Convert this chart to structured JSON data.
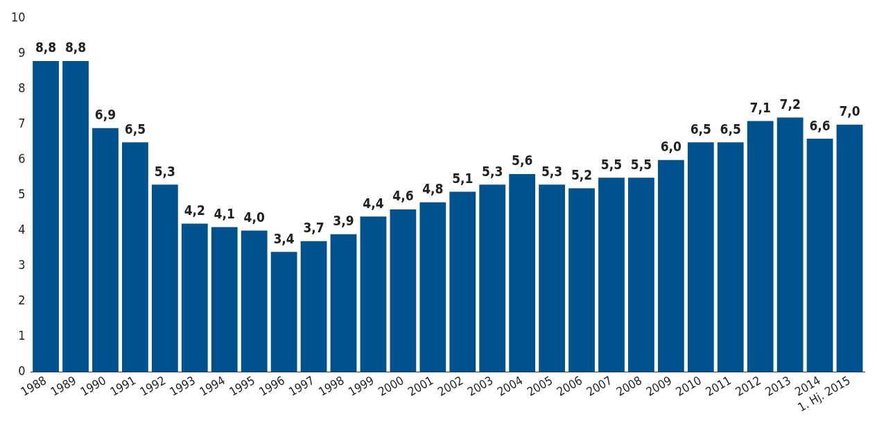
{
  "chart_data": {
    "type": "bar",
    "categories": [
      "1988",
      "1989",
      "1990",
      "1991",
      "1992",
      "1993",
      "1994",
      "1995",
      "1996",
      "1997",
      "1998",
      "1999",
      "2000",
      "2001",
      "2002",
      "2003",
      "2004",
      "2005",
      "2006",
      "2007",
      "2008",
      "2009",
      "2010",
      "2011",
      "2012",
      "2013",
      "2014",
      "1. Hj. 2015"
    ],
    "values": [
      8.8,
      8.8,
      6.9,
      6.5,
      5.3,
      4.2,
      4.1,
      4.0,
      3.4,
      3.7,
      3.9,
      4.4,
      4.6,
      4.8,
      5.1,
      5.3,
      5.6,
      5.3,
      5.2,
      5.5,
      5.5,
      6.0,
      6.5,
      6.5,
      7.1,
      7.2,
      6.6,
      7.0
    ],
    "value_labels": [
      "8,8",
      "8,8",
      "6,9",
      "6,5",
      "5,3",
      "4,2",
      "4,1",
      "4,0",
      "3,4",
      "3,7",
      "3,9",
      "4,4",
      "4,6",
      "4,8",
      "5,1",
      "5,3",
      "5,6",
      "5,3",
      "5,2",
      "5,5",
      "5,5",
      "6,0",
      "6,5",
      "6,5",
      "7,1",
      "7,2",
      "6,6",
      "7,0"
    ],
    "color": "#00528f",
    "ylim": [
      0,
      10
    ],
    "yticks": [
      0,
      1,
      2,
      3,
      4,
      5,
      6,
      7,
      8,
      9,
      10
    ],
    "grid": false,
    "legend": false
  }
}
